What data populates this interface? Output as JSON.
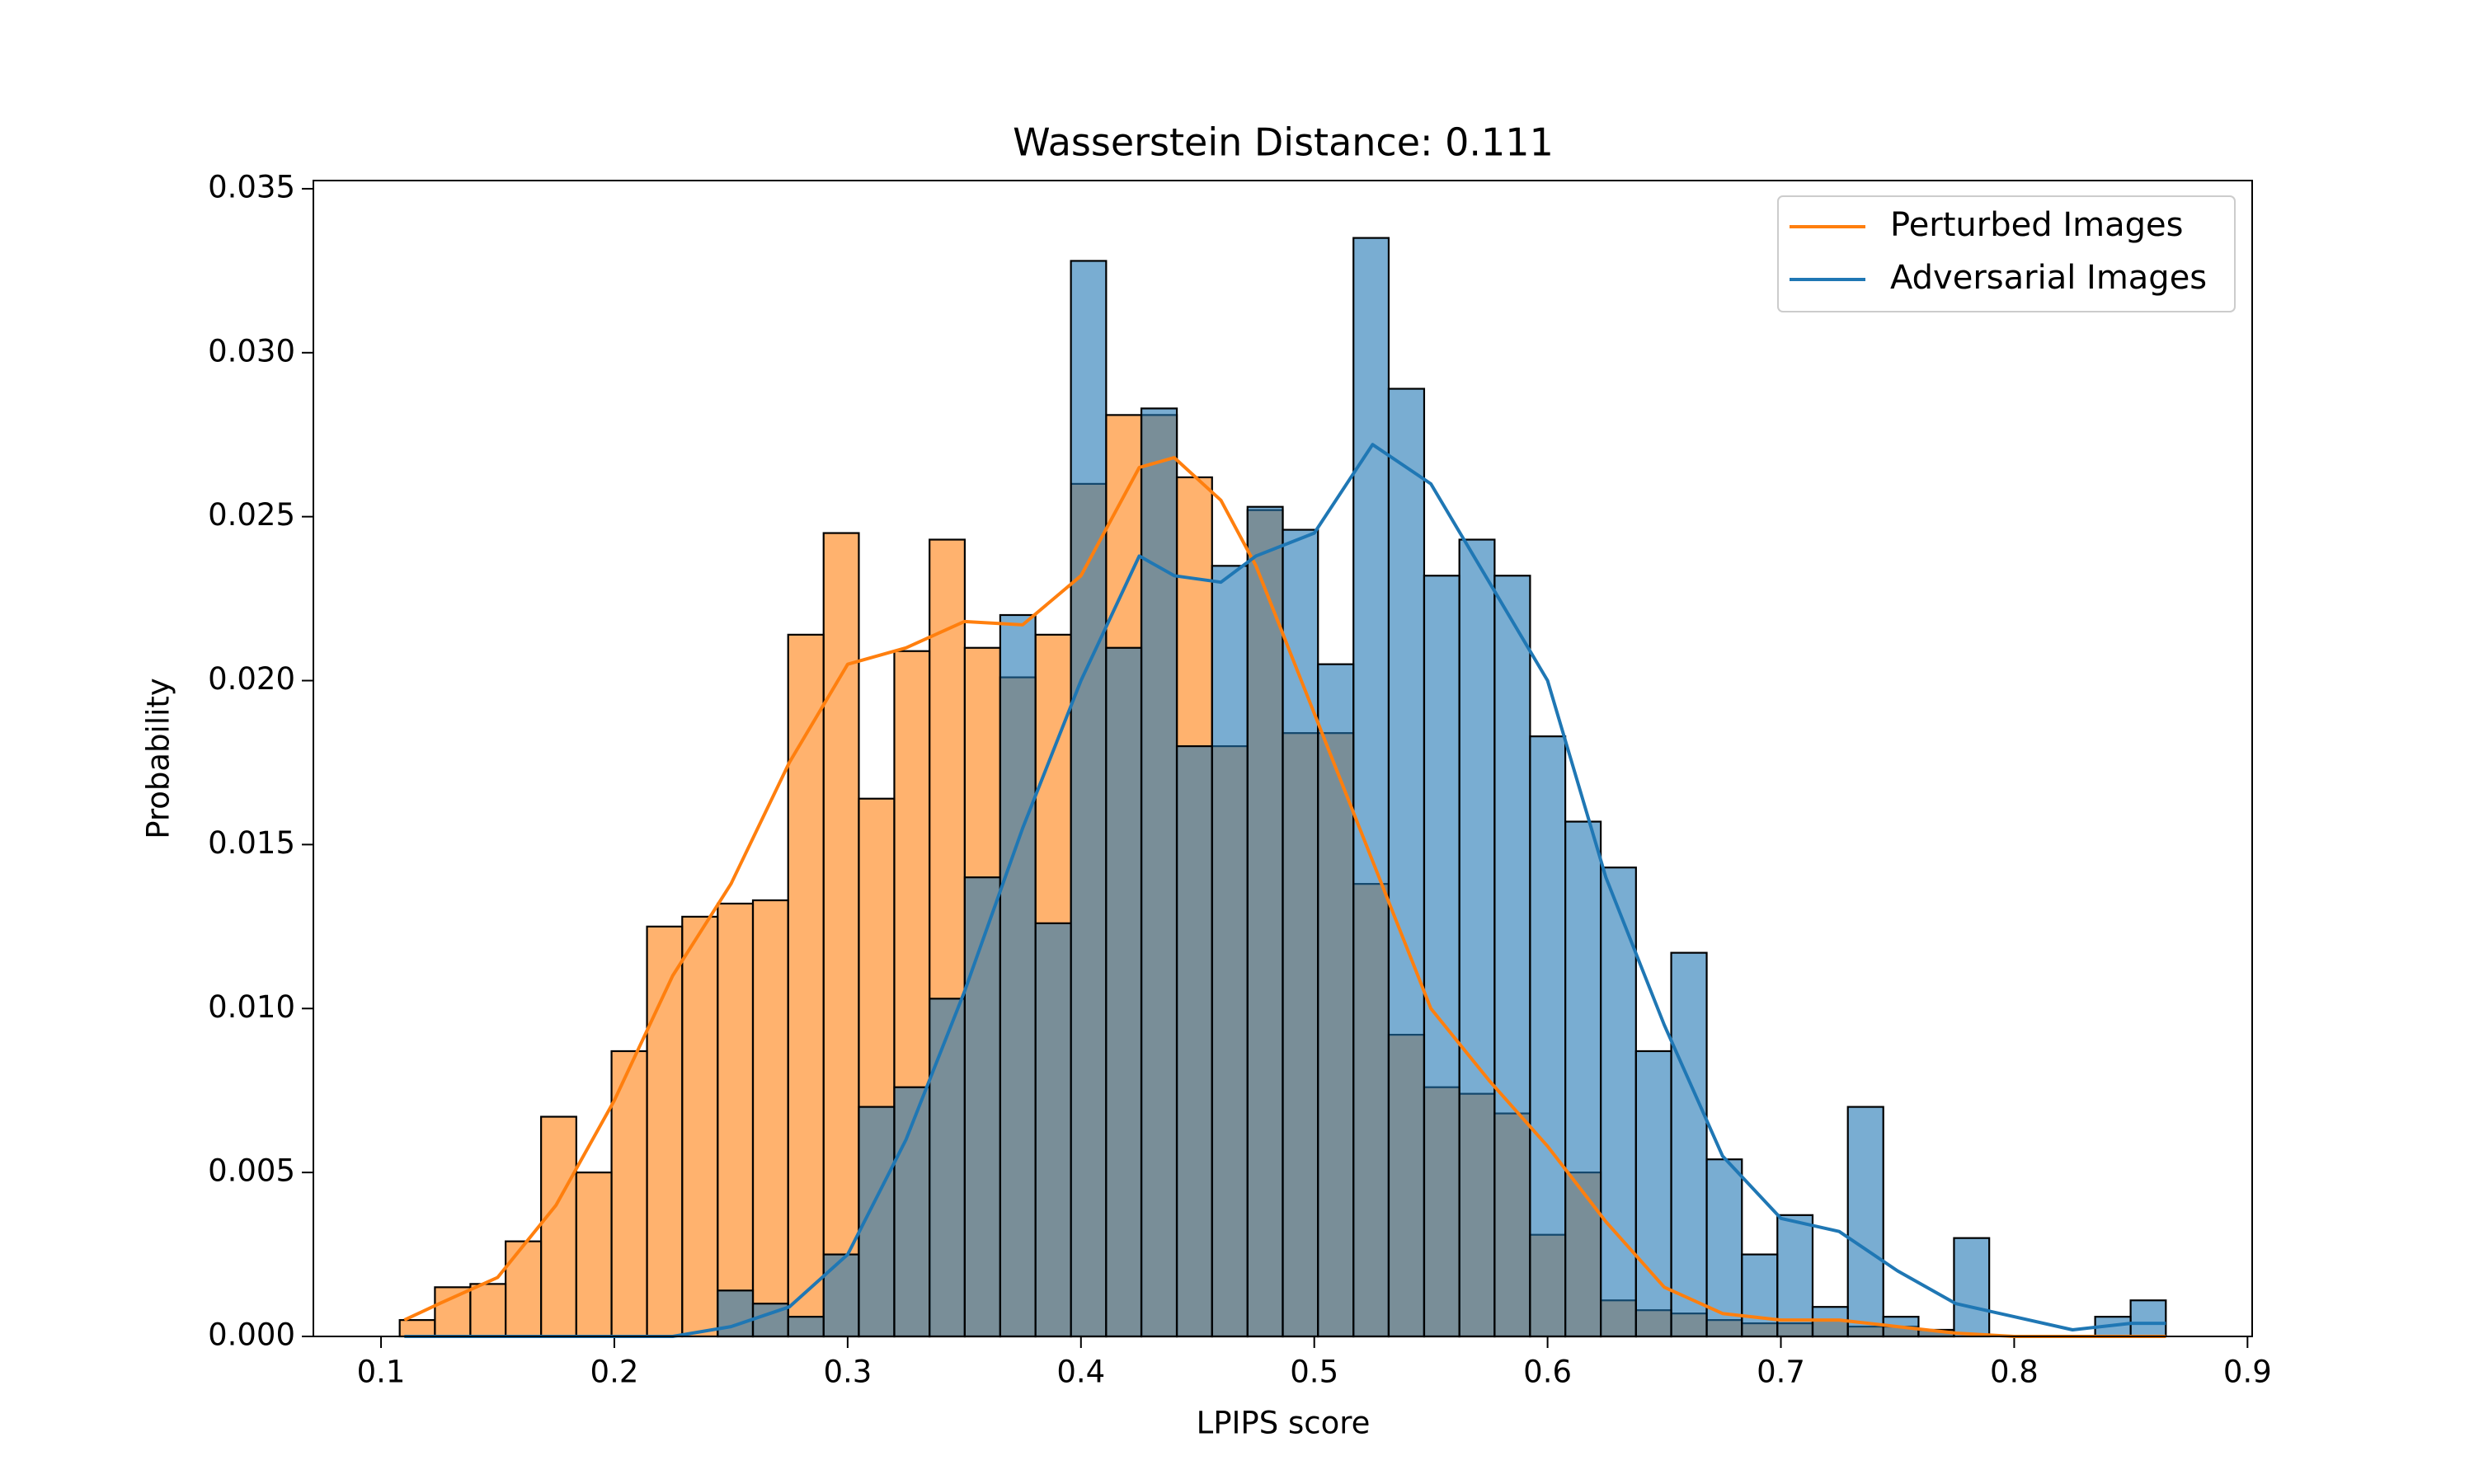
{
  "chart_data": {
    "type": "histogram",
    "title": "Wasserstein Distance: 0.111",
    "xlabel": "LPIPS score",
    "ylabel": "Probability",
    "bins": [
      0.108,
      0.1231,
      0.1383,
      0.1534,
      0.1686,
      0.1837,
      0.1988,
      0.214,
      0.2291,
      0.2443,
      0.2594,
      0.2745,
      0.2897,
      0.3048,
      0.32,
      0.3351,
      0.3502,
      0.3654,
      0.3805,
      0.3957,
      0.4108,
      0.4259,
      0.4411,
      0.4562,
      0.4714,
      0.4865,
      0.5016,
      0.5168,
      0.5319,
      0.5471,
      0.5622,
      0.5773,
      0.5925,
      0.6076,
      0.6228,
      0.6379,
      0.653,
      0.6682,
      0.6833,
      0.6985,
      0.7136,
      0.7287,
      0.7439,
      0.759,
      0.7742,
      0.7893,
      0.8044,
      0.8196,
      0.8347,
      0.8499,
      0.865
    ],
    "kde_x": [
      0.11,
      0.125,
      0.15,
      0.175,
      0.2,
      0.225,
      0.25,
      0.275,
      0.3,
      0.325,
      0.35,
      0.375,
      0.4,
      0.425,
      0.44,
      0.46,
      0.475,
      0.5,
      0.525,
      0.55,
      0.575,
      0.6,
      0.625,
      0.65,
      0.675,
      0.7,
      0.725,
      0.75,
      0.775,
      0.8,
      0.825,
      0.85,
      0.865
    ],
    "series": [
      {
        "name": "Perturbed Images",
        "color": "#ff7f0e",
        "values": [
          0.0005,
          0.0015,
          0.0016,
          0.0029,
          0.0067,
          0.005,
          0.0087,
          0.0125,
          0.0128,
          0.0132,
          0.0133,
          0.0214,
          0.0245,
          0.0164,
          0.0209,
          0.0243,
          0.021,
          0.0201,
          0.0214,
          0.026,
          0.0281,
          0.0281,
          0.0262,
          0.018,
          0.0252,
          0.0184,
          0.0184,
          0.0138,
          0.0092,
          0.0076,
          0.0074,
          0.0068,
          0.0031,
          0.005,
          0.0011,
          0.0008,
          0.0007,
          0.0005,
          0.0004,
          0.0004,
          0.0005,
          0.0003,
          0.0003,
          0.0002,
          0,
          0,
          0,
          0,
          0,
          0
        ],
        "kde": [
          0.0005,
          0.001,
          0.0018,
          0.004,
          0.0072,
          0.011,
          0.0138,
          0.0175,
          0.0205,
          0.021,
          0.0218,
          0.0217,
          0.0232,
          0.0265,
          0.0268,
          0.0255,
          0.0235,
          0.019,
          0.0145,
          0.01,
          0.0078,
          0.0058,
          0.0035,
          0.0015,
          0.0007,
          0.0005,
          0.0005,
          0.0003,
          0.0001,
          0,
          0,
          0,
          0
        ]
      },
      {
        "name": "Adversarial Images",
        "color": "#1f77b4",
        "values": [
          0,
          0,
          0,
          0,
          0,
          0,
          0,
          0,
          0,
          0.0014,
          0.001,
          0.0006,
          0.0025,
          0.007,
          0.0076,
          0.0103,
          0.014,
          0.022,
          0.0126,
          0.0328,
          0.021,
          0.0283,
          0.018,
          0.0235,
          0.0253,
          0.0246,
          0.0205,
          0.0335,
          0.0289,
          0.0232,
          0.0243,
          0.0232,
          0.0183,
          0.0157,
          0.0143,
          0.0087,
          0.0117,
          0.0054,
          0.0025,
          0.0037,
          0.0009,
          0.007,
          0.0006,
          0.0002,
          0.003,
          0,
          0,
          0,
          0.0006,
          0.0011
        ],
        "kde": [
          0,
          0,
          0,
          0,
          0,
          0,
          0.0003,
          0.0009,
          0.0025,
          0.006,
          0.0105,
          0.0155,
          0.02,
          0.0238,
          0.0232,
          0.023,
          0.0238,
          0.0245,
          0.0272,
          0.026,
          0.023,
          0.02,
          0.014,
          0.0095,
          0.0055,
          0.0036,
          0.0032,
          0.002,
          0.001,
          0.0006,
          0.0002,
          0.0004,
          0.0004
        ]
      }
    ],
    "xlim": [
      0.071,
      0.902
    ],
    "ylim": [
      0,
      0.03525
    ],
    "xticks": [
      0.1,
      0.2,
      0.3,
      0.4,
      0.5,
      0.6,
      0.7,
      0.8,
      0.9
    ],
    "yticks": [
      {
        "value": 0,
        "label": "0.000"
      },
      {
        "value": 0.005,
        "label": "0.005"
      },
      {
        "value": 0.01,
        "label": "0.010"
      },
      {
        "value": 0.015,
        "label": "0.015"
      },
      {
        "value": 0.02,
        "label": "0.020"
      },
      {
        "value": 0.025,
        "label": "0.025"
      },
      {
        "value": 0.03,
        "label": "0.030"
      },
      {
        "value": 0.035,
        "label": "0.035"
      }
    ],
    "legend": "upper right"
  }
}
